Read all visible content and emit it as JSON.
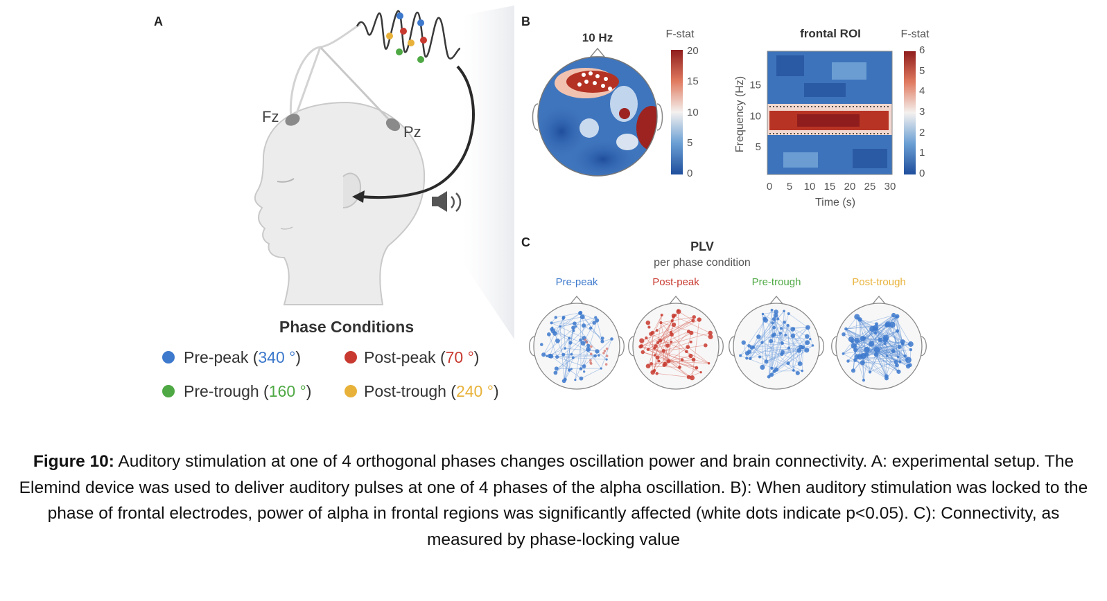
{
  "figure": {
    "panel_labels": {
      "a": "A",
      "b": "B",
      "c": "C"
    },
    "panel_a": {
      "electrodes": {
        "fz": "Fz",
        "pz": "Pz"
      },
      "icons": [
        "head-icon",
        "speaker-icon",
        "eeg-wave-icon"
      ],
      "legend_title": "Phase Conditions",
      "conditions": [
        {
          "name": "Pre-peak",
          "angle": "340 °",
          "color": "#3d79cc"
        },
        {
          "name": "Post-peak",
          "angle": "70 °",
          "color": "#c8392f"
        },
        {
          "name": "Pre-trough",
          "angle": "160 °",
          "color": "#4ea843"
        },
        {
          "name": "Post-trough",
          "angle": "240 °",
          "color": "#e8b23a"
        }
      ]
    },
    "panel_b": {
      "topo": {
        "title": "10 Hz",
        "colorbar_label": "F-stat",
        "colorbar_ticks": [
          "20",
          "15",
          "10",
          "5",
          "0"
        ]
      },
      "tfr": {
        "title": "frontal ROI",
        "colorbar_label": "F-stat",
        "colorbar_ticks": [
          "6",
          "5",
          "4",
          "3",
          "2",
          "1",
          "0"
        ]
      }
    },
    "panel_c": {
      "title": "PLV",
      "subtitle": "per phase condition",
      "heads": [
        {
          "label": "Pre-peak",
          "color": "#3d79cc"
        },
        {
          "label": "Post-peak",
          "color": "#c8392f"
        },
        {
          "label": "Pre-trough",
          "color": "#4ea843"
        },
        {
          "label": "Post-trough",
          "color": "#e8b23a"
        }
      ]
    }
  },
  "chart_data": [
    {
      "type": "heatmap",
      "title": "frontal ROI",
      "xlabel": "Time (s)",
      "ylabel": "Frequency (Hz)",
      "x_ticks": [
        0,
        5,
        10,
        15,
        20,
        25,
        30
      ],
      "y_ticks": [
        5,
        10,
        15
      ],
      "xlim": [
        0,
        30
      ],
      "ylim": [
        1,
        20
      ],
      "colorbar": {
        "label": "F-stat",
        "range": [
          0,
          6
        ]
      },
      "note": "significant elevated F-stat band around 8-11 Hz across 0-30 s (dotted contour)"
    },
    {
      "type": "heatmap",
      "title": "10 Hz",
      "colorbar": {
        "label": "F-stat",
        "range": [
          0,
          20
        ],
        "ticks": [
          0,
          5,
          10,
          15,
          20
        ]
      },
      "note": "scalp topography; significant cluster over frontal electrodes (white dots)"
    }
  ],
  "caption": {
    "label": "Figure 10:",
    "text": " Auditory stimulation at one of 4 orthogonal phases changes oscillation power and brain connectivity. A: experimental setup. The Elemind device was used to deliver auditory pulses at one of 4 phases of the alpha oscillation. B): When auditory stimulation was locked to the phase of frontal electrodes, power of alpha in frontal regions was significantly affected (white dots indicate p<0.05). C): Connectivity, as measured by phase-locking value"
  }
}
